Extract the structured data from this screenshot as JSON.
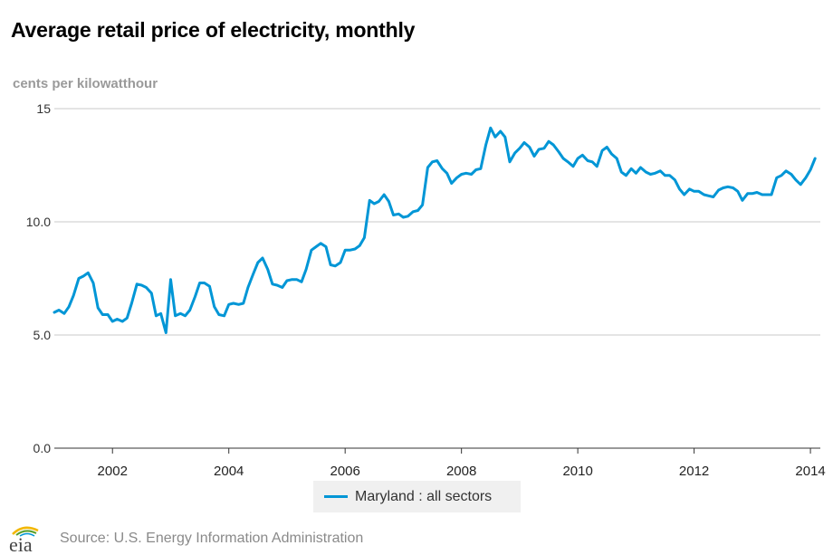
{
  "chart_data": {
    "type": "line",
    "title": "Average retail price of electricity, monthly",
    "ylabel": "cents per kilowatthour",
    "xlabel": "",
    "ylim": [
      0,
      15
    ],
    "xlim": [
      2001.0,
      2014.17
    ],
    "y_ticks": [
      "0.0",
      "5.0",
      "10.0",
      "15"
    ],
    "y_tick_values": [
      0,
      5,
      10,
      15
    ],
    "x_ticks": [
      "2002",
      "2004",
      "2006",
      "2008",
      "2010",
      "2012",
      "2014"
    ],
    "x_tick_values": [
      2002,
      2004,
      2006,
      2008,
      2010,
      2012,
      2014
    ],
    "grid": "horizontal",
    "legend_position": "bottom-center",
    "line_color": "#0096d6",
    "series": [
      {
        "name": "Maryland : all sectors",
        "points": [
          [
            2001.0,
            6.0
          ],
          [
            2001.08,
            6.1
          ],
          [
            2001.17,
            5.95
          ],
          [
            2001.25,
            6.25
          ],
          [
            2001.33,
            6.75
          ],
          [
            2001.42,
            7.5
          ],
          [
            2001.5,
            7.6
          ],
          [
            2001.58,
            7.75
          ],
          [
            2001.67,
            7.3
          ],
          [
            2001.75,
            6.2
          ],
          [
            2001.83,
            5.9
          ],
          [
            2001.92,
            5.9
          ],
          [
            2002.0,
            5.6
          ],
          [
            2002.08,
            5.7
          ],
          [
            2002.17,
            5.6
          ],
          [
            2002.25,
            5.75
          ],
          [
            2002.33,
            6.4
          ],
          [
            2002.42,
            7.25
          ],
          [
            2002.5,
            7.2
          ],
          [
            2002.58,
            7.1
          ],
          [
            2002.67,
            6.85
          ],
          [
            2002.75,
            5.85
          ],
          [
            2002.83,
            5.95
          ],
          [
            2002.92,
            5.1
          ],
          [
            2003.0,
            7.45
          ],
          [
            2003.08,
            5.85
          ],
          [
            2003.17,
            5.95
          ],
          [
            2003.25,
            5.85
          ],
          [
            2003.33,
            6.1
          ],
          [
            2003.42,
            6.7
          ],
          [
            2003.5,
            7.3
          ],
          [
            2003.58,
            7.3
          ],
          [
            2003.67,
            7.15
          ],
          [
            2003.75,
            6.25
          ],
          [
            2003.83,
            5.9
          ],
          [
            2003.92,
            5.85
          ],
          [
            2004.0,
            6.35
          ],
          [
            2004.08,
            6.4
          ],
          [
            2004.17,
            6.35
          ],
          [
            2004.25,
            6.4
          ],
          [
            2004.33,
            7.1
          ],
          [
            2004.42,
            7.7
          ],
          [
            2004.5,
            8.2
          ],
          [
            2004.58,
            8.4
          ],
          [
            2004.67,
            7.9
          ],
          [
            2004.75,
            7.25
          ],
          [
            2004.83,
            7.2
          ],
          [
            2004.92,
            7.1
          ],
          [
            2005.0,
            7.4
          ],
          [
            2005.08,
            7.45
          ],
          [
            2005.17,
            7.45
          ],
          [
            2005.25,
            7.35
          ],
          [
            2005.33,
            7.9
          ],
          [
            2005.42,
            8.75
          ],
          [
            2005.5,
            8.9
          ],
          [
            2005.58,
            9.05
          ],
          [
            2005.67,
            8.9
          ],
          [
            2005.75,
            8.1
          ],
          [
            2005.83,
            8.05
          ],
          [
            2005.92,
            8.2
          ],
          [
            2006.0,
            8.75
          ],
          [
            2006.08,
            8.75
          ],
          [
            2006.17,
            8.8
          ],
          [
            2006.25,
            8.95
          ],
          [
            2006.33,
            9.3
          ],
          [
            2006.42,
            10.95
          ],
          [
            2006.5,
            10.8
          ],
          [
            2006.58,
            10.9
          ],
          [
            2006.67,
            11.2
          ],
          [
            2006.75,
            10.9
          ],
          [
            2006.83,
            10.3
          ],
          [
            2006.92,
            10.35
          ],
          [
            2007.0,
            10.2
          ],
          [
            2007.08,
            10.25
          ],
          [
            2007.17,
            10.45
          ],
          [
            2007.25,
            10.5
          ],
          [
            2007.33,
            10.75
          ],
          [
            2007.42,
            12.4
          ],
          [
            2007.5,
            12.65
          ],
          [
            2007.58,
            12.7
          ],
          [
            2007.67,
            12.35
          ],
          [
            2007.75,
            12.15
          ],
          [
            2007.83,
            11.7
          ],
          [
            2007.92,
            11.95
          ],
          [
            2008.0,
            12.1
          ],
          [
            2008.08,
            12.15
          ],
          [
            2008.17,
            12.1
          ],
          [
            2008.25,
            12.3
          ],
          [
            2008.33,
            12.35
          ],
          [
            2008.42,
            13.4
          ],
          [
            2008.5,
            14.15
          ],
          [
            2008.58,
            13.75
          ],
          [
            2008.67,
            14.0
          ],
          [
            2008.75,
            13.75
          ],
          [
            2008.83,
            12.65
          ],
          [
            2008.92,
            13.05
          ],
          [
            2009.0,
            13.25
          ],
          [
            2009.08,
            13.5
          ],
          [
            2009.17,
            13.3
          ],
          [
            2009.25,
            12.9
          ],
          [
            2009.33,
            13.2
          ],
          [
            2009.42,
            13.25
          ],
          [
            2009.5,
            13.55
          ],
          [
            2009.58,
            13.4
          ],
          [
            2009.67,
            13.1
          ],
          [
            2009.75,
            12.8
          ],
          [
            2009.83,
            12.65
          ],
          [
            2009.92,
            12.45
          ],
          [
            2010.0,
            12.8
          ],
          [
            2010.08,
            12.95
          ],
          [
            2010.17,
            12.7
          ],
          [
            2010.25,
            12.65
          ],
          [
            2010.33,
            12.45
          ],
          [
            2010.42,
            13.15
          ],
          [
            2010.5,
            13.3
          ],
          [
            2010.58,
            13.0
          ],
          [
            2010.67,
            12.8
          ],
          [
            2010.75,
            12.2
          ],
          [
            2010.83,
            12.05
          ],
          [
            2010.92,
            12.35
          ],
          [
            2011.0,
            12.15
          ],
          [
            2011.08,
            12.4
          ],
          [
            2011.17,
            12.2
          ],
          [
            2011.25,
            12.1
          ],
          [
            2011.33,
            12.15
          ],
          [
            2011.42,
            12.25
          ],
          [
            2011.5,
            12.05
          ],
          [
            2011.58,
            12.05
          ],
          [
            2011.67,
            11.85
          ],
          [
            2011.75,
            11.45
          ],
          [
            2011.83,
            11.2
          ],
          [
            2011.92,
            11.45
          ],
          [
            2012.0,
            11.35
          ],
          [
            2012.08,
            11.35
          ],
          [
            2012.17,
            11.2
          ],
          [
            2012.25,
            11.15
          ],
          [
            2012.33,
            11.1
          ],
          [
            2012.42,
            11.4
          ],
          [
            2012.5,
            11.5
          ],
          [
            2012.58,
            11.55
          ],
          [
            2012.67,
            11.5
          ],
          [
            2012.75,
            11.35
          ],
          [
            2012.83,
            10.95
          ],
          [
            2012.92,
            11.25
          ],
          [
            2013.0,
            11.25
          ],
          [
            2013.08,
            11.3
          ],
          [
            2013.17,
            11.2
          ],
          [
            2013.25,
            11.2
          ],
          [
            2013.33,
            11.2
          ],
          [
            2013.42,
            11.95
          ],
          [
            2013.5,
            12.05
          ],
          [
            2013.58,
            12.25
          ],
          [
            2013.67,
            12.1
          ],
          [
            2013.75,
            11.85
          ],
          [
            2013.83,
            11.65
          ],
          [
            2013.92,
            11.95
          ],
          [
            2014.0,
            12.3
          ],
          [
            2014.08,
            12.8
          ]
        ]
      }
    ]
  },
  "footer": {
    "logo_text": "eia",
    "source": "Source: U.S. Energy Information Administration"
  }
}
